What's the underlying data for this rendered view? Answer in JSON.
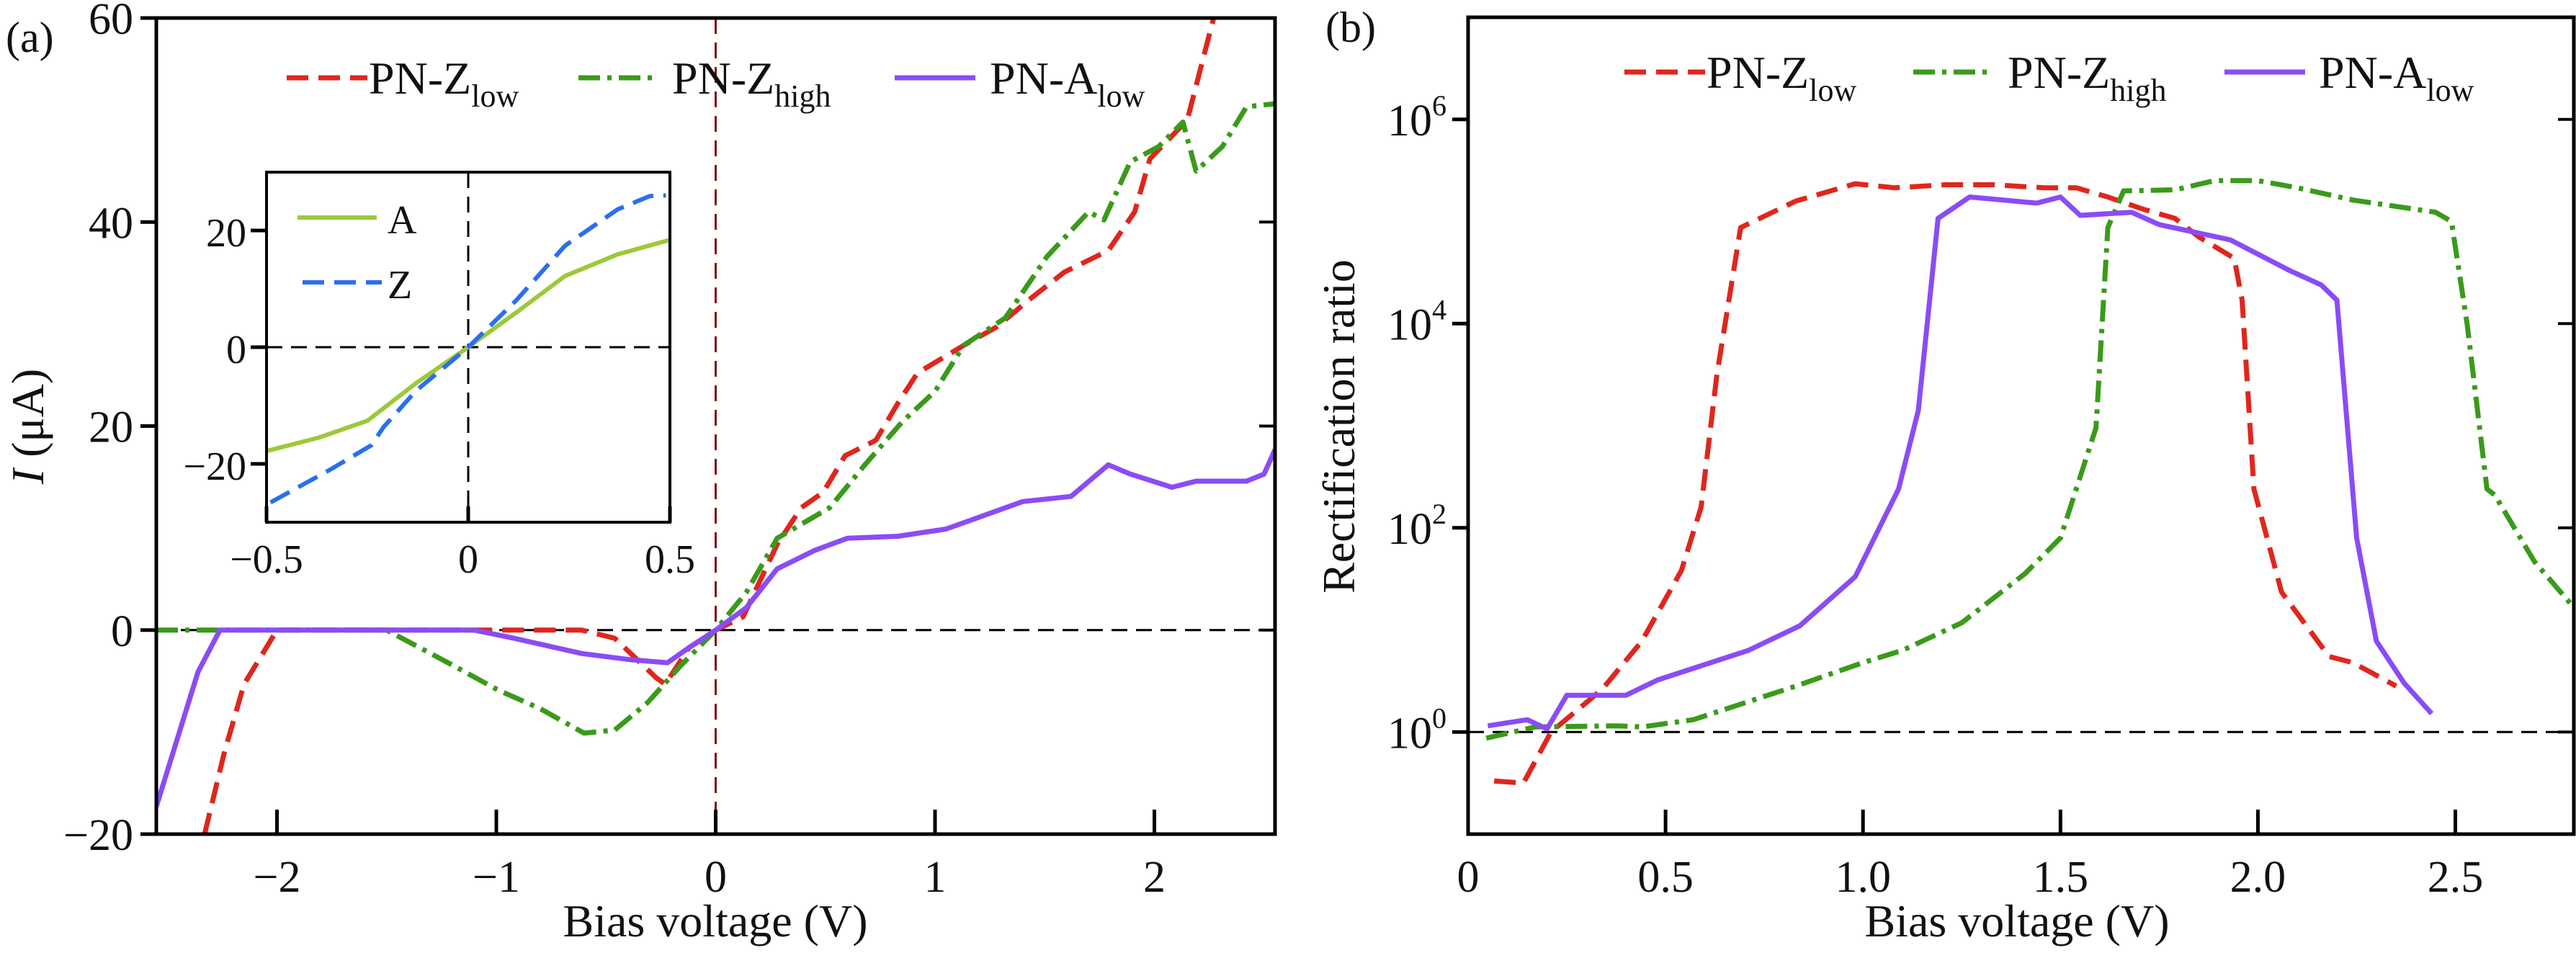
{
  "chart_data": [
    {
      "id": "a",
      "type": "line",
      "panel_label": "(a)",
      "xlabel": "Bias voltage (V)",
      "ylabel_italic": "I",
      "ylabel_rest": " (μA)",
      "xlim": [
        -2.55,
        2.55
      ],
      "ylim": [
        -20,
        60
      ],
      "xticks": [
        {
          "v": -2,
          "label": "−2"
        },
        {
          "v": -1,
          "label": "−1"
        },
        {
          "v": 0,
          "label": "0"
        },
        {
          "v": 1,
          "label": "1"
        },
        {
          "v": 2,
          "label": "2"
        }
      ],
      "yticks": [
        {
          "v": -20,
          "label": "−20"
        },
        {
          "v": 0,
          "label": "0"
        },
        {
          "v": 20,
          "label": "20"
        },
        {
          "v": 40,
          "label": "40"
        },
        {
          "v": 60,
          "label": "60"
        }
      ],
      "reference_lines": {
        "y": 0,
        "x": 0
      },
      "legend_placement": "top",
      "series": [
        {
          "name": "PN-Z",
          "sub": "low",
          "color": "#e0261c",
          "style": "dashed",
          "x": [
            -2.33,
            -2.24,
            -2.15,
            -2.0,
            -1.5,
            -1.0,
            -0.61,
            -0.46,
            -0.27,
            -0.23,
            -0.12,
            0,
            0.125,
            0.28,
            0.39,
            0.49,
            0.59,
            0.73,
            0.83,
            0.92,
            1.13,
            1.28,
            1.43,
            1.59,
            1.79,
            1.91,
            1.98,
            2.15,
            2.27
          ],
          "y": [
            -20,
            -12,
            -5.3,
            0,
            0,
            0,
            0,
            -0.8,
            -4.7,
            -5.3,
            -1.7,
            0,
            1.3,
            8.4,
            12,
            13.5,
            17.1,
            18.6,
            22.2,
            25.2,
            27.9,
            29.7,
            32.4,
            35.1,
            37.2,
            41,
            46.2,
            50,
            60
          ]
        },
        {
          "name": "PN-Z",
          "sub": "high",
          "color": "#3a9a1a",
          "style": "dashdot",
          "x": [
            -2.55,
            -2.0,
            -1.5,
            -1.22,
            -0.99,
            -0.8,
            -0.6,
            -0.46,
            -0.31,
            -0.16,
            0,
            0.14,
            0.28,
            0.52,
            0.68,
            0.85,
            1.0,
            1.13,
            1.32,
            1.51,
            1.7,
            1.77,
            1.89,
            2.02,
            2.13,
            2.19,
            2.31,
            2.42,
            2.55
          ],
          "y": [
            0,
            0,
            0,
            -3.2,
            -5.9,
            -7.7,
            -10.1,
            -9.8,
            -7.1,
            -3.5,
            0,
            3.7,
            9,
            12,
            16.2,
            20.4,
            23.4,
            27.9,
            30.6,
            36.6,
            41,
            40.2,
            45.9,
            47.4,
            49.8,
            45,
            47.4,
            51.3,
            51.6
          ]
        },
        {
          "name": "PN-A",
          "sub": "low",
          "color": "#8a4cf6",
          "style": "solid",
          "x": [
            -2.55,
            -2.36,
            -2.26,
            -1.5,
            -1.1,
            -0.92,
            -0.61,
            -0.39,
            -0.22,
            -0.12,
            0,
            0.14,
            0.28,
            0.45,
            0.6,
            0.83,
            1.05,
            1.4,
            1.62,
            1.79,
            1.89,
            2.08,
            2.19,
            2.42,
            2.5,
            2.55
          ],
          "y": [
            -17.3,
            -4.1,
            0,
            0,
            0,
            -0.8,
            -2.3,
            -2.9,
            -3.2,
            -1.7,
            0,
            2.2,
            6,
            7.8,
            9,
            9.2,
            9.9,
            12.6,
            13.1,
            16.2,
            15.3,
            14,
            14.6,
            14.6,
            15.3,
            17.7
          ]
        }
      ]
    },
    {
      "id": "a-inset",
      "type": "line",
      "xlim": [
        -0.5,
        0.5
      ],
      "ylim": [
        -30,
        30
      ],
      "xticks": [
        {
          "v": -0.5,
          "label": "−0.5"
        },
        {
          "v": 0,
          "label": "0"
        },
        {
          "v": 0.5,
          "label": "0.5"
        }
      ],
      "yticks": [
        {
          "v": -20,
          "label": "−20"
        },
        {
          "v": 0,
          "label": "0"
        },
        {
          "v": 20,
          "label": "20"
        }
      ],
      "reference_lines": {
        "y": 0,
        "x": 0
      },
      "legend_placement": "top-left",
      "series": [
        {
          "name": "A",
          "color": "#9cc93a",
          "style": "solid",
          "x": [
            -0.5,
            -0.37,
            -0.25,
            -0.13,
            0,
            0.12,
            0.24,
            0.37,
            0.5
          ],
          "y": [
            -17.8,
            -15.5,
            -12.6,
            -6.2,
            0,
            6,
            12.2,
            15.9,
            18.4
          ]
        },
        {
          "name": "Z",
          "color": "#2a6ff0",
          "style": "dashed",
          "x": [
            -0.49,
            -0.34,
            -0.24,
            -0.21,
            -0.13,
            0,
            0.12,
            0.24,
            0.37,
            0.45,
            0.49
          ],
          "y": [
            -26.6,
            -20.9,
            -16.8,
            -13.7,
            -7.5,
            0,
            8.1,
            17.4,
            23.6,
            25.9,
            26
          ]
        }
      ]
    },
    {
      "id": "b",
      "type": "line",
      "panel_label": "(b)",
      "xlabel": "Bias voltage (V)",
      "ylabel": "Rectification ratio",
      "y_scale": "log10",
      "xlim": [
        0,
        2.8
      ],
      "ylim_log10": [
        -1,
        7
      ],
      "xticks": [
        {
          "v": 0,
          "label": "0"
        },
        {
          "v": 0.5,
          "label": "0.5"
        },
        {
          "v": 1.0,
          "label": "1.0"
        },
        {
          "v": 1.5,
          "label": "1.5"
        },
        {
          "v": 2.0,
          "label": "2.0"
        },
        {
          "v": 2.5,
          "label": "2.5"
        }
      ],
      "yticks": [
        {
          "v": 0,
          "base": "10",
          "exp": "0"
        },
        {
          "v": 2,
          "base": "10",
          "exp": "2"
        },
        {
          "v": 4,
          "base": "10",
          "exp": "4"
        },
        {
          "v": 6,
          "base": "10",
          "exp": "6"
        }
      ],
      "reference_lines": {
        "y_log10": 0
      },
      "legend_placement": "top",
      "series": [
        {
          "name": "PN-Z",
          "sub": "low",
          "color": "#e0261c",
          "style": "dashed",
          "x": [
            0.066,
            0.14,
            0.21,
            0.34,
            0.44,
            0.54,
            0.59,
            0.63,
            0.69,
            0.83,
            0.98,
            1.08,
            1.21,
            1.33,
            1.46,
            1.54,
            1.62,
            1.71,
            1.79,
            1.85,
            1.94,
            1.96,
            1.99,
            2.06,
            2.18,
            2.24,
            2.35
          ],
          "log10_y": [
            -0.48,
            -0.5,
            0,
            0.42,
            0.89,
            1.58,
            2.2,
            3.5,
            4.94,
            5.2,
            5.37,
            5.33,
            5.36,
            5.36,
            5.33,
            5.33,
            5.24,
            5.12,
            5.03,
            4.85,
            4.64,
            4.23,
            2.38,
            1.37,
            0.74,
            0.68,
            0.45
          ]
        },
        {
          "name": "PN-Z",
          "sub": "high",
          "color": "#3a9a1a",
          "style": "dashdot",
          "x": [
            0.046,
            0.17,
            0.38,
            0.44,
            0.57,
            0.83,
            1.0,
            1.1,
            1.25,
            1.41,
            1.5,
            1.59,
            1.62,
            1.66,
            1.79,
            1.89,
            2.0,
            2.1,
            2.24,
            2.45,
            2.49,
            2.53,
            2.58,
            2.6,
            2.7,
            2.8
          ],
          "log10_y": [
            -0.06,
            0.05,
            0.06,
            0.05,
            0.12,
            0.45,
            0.68,
            0.8,
            1.07,
            1.55,
            1.9,
            2.98,
            4.94,
            5.3,
            5.31,
            5.4,
            5.4,
            5.33,
            5.21,
            5.09,
            5.0,
            3.99,
            2.38,
            2.32,
            1.67,
            1.22
          ]
        },
        {
          "name": "PN-A",
          "sub": "low",
          "color": "#8a4cf6",
          "style": "solid",
          "x": [
            0.05,
            0.15,
            0.2,
            0.25,
            0.4,
            0.48,
            0.71,
            0.84,
            0.98,
            1.09,
            1.14,
            1.19,
            1.27,
            1.44,
            1.5,
            1.55,
            1.68,
            1.75,
            1.93,
            2.08,
            2.16,
            2.2,
            2.25,
            2.3,
            2.37,
            2.44
          ],
          "log10_y": [
            0.06,
            0.12,
            0.03,
            0.36,
            0.36,
            0.51,
            0.8,
            1.04,
            1.52,
            2.38,
            3.15,
            5.03,
            5.24,
            5.18,
            5.24,
            5.06,
            5.09,
            4.97,
            4.82,
            4.52,
            4.38,
            4.23,
            1.9,
            0.89,
            0.48,
            0.18
          ]
        }
      ]
    }
  ]
}
